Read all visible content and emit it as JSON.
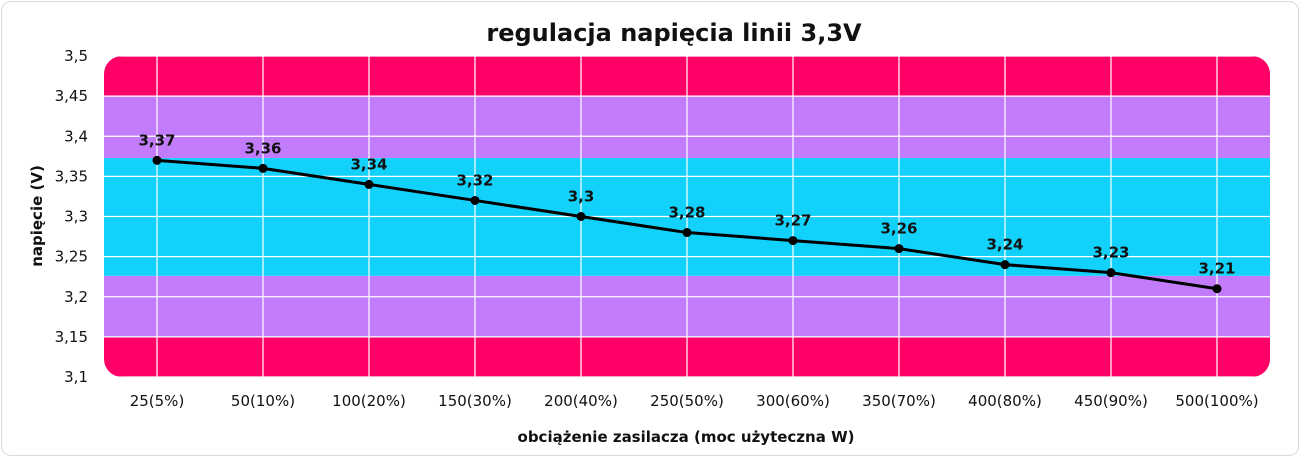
{
  "chart_data": {
    "type": "line",
    "title": "regulacja napięcia linii 3,3V",
    "xlabel": "obciążenie zasilacza (moc użyteczna W)",
    "ylabel": "napięcie (V)",
    "ylim": [
      3.1,
      3.5
    ],
    "yticks": [
      3.1,
      3.15,
      3.2,
      3.25,
      3.3,
      3.35,
      3.4,
      3.45,
      3.5
    ],
    "ytick_labels": [
      "3,1",
      "3,15",
      "3,2",
      "3,25",
      "3,3",
      "3,35",
      "3,4",
      "3,45",
      "3,5"
    ],
    "categories": [
      "25(5%)",
      "50(10%)",
      "100(20%)",
      "150(30%)",
      "200(40%)",
      "250(50%)",
      "300(60%)",
      "350(70%)",
      "400(80%)",
      "450(90%)",
      "500(100%)"
    ],
    "values": [
      3.37,
      3.36,
      3.34,
      3.32,
      3.3,
      3.28,
      3.27,
      3.26,
      3.24,
      3.23,
      3.21
    ],
    "data_labels": [
      "3,37",
      "3,36",
      "3,34",
      "3,32",
      "3,3",
      "3,28",
      "3,27",
      "3,26",
      "3,24",
      "3,23",
      "3,21"
    ],
    "grid": true,
    "bands": [
      {
        "from": 3.1,
        "to": 3.15,
        "color": "#ff0066"
      },
      {
        "from": 3.15,
        "to": 3.2261,
        "color": "#c27cfb"
      },
      {
        "from": 3.2261,
        "to": 3.3728,
        "color": "#12d1fa"
      },
      {
        "from": 3.3728,
        "to": 3.45,
        "color": "#c27cfb"
      },
      {
        "from": 3.45,
        "to": 3.5,
        "color": "#ff0066"
      }
    ],
    "line_color": "#000000",
    "grid_color": "#ffffff"
  }
}
